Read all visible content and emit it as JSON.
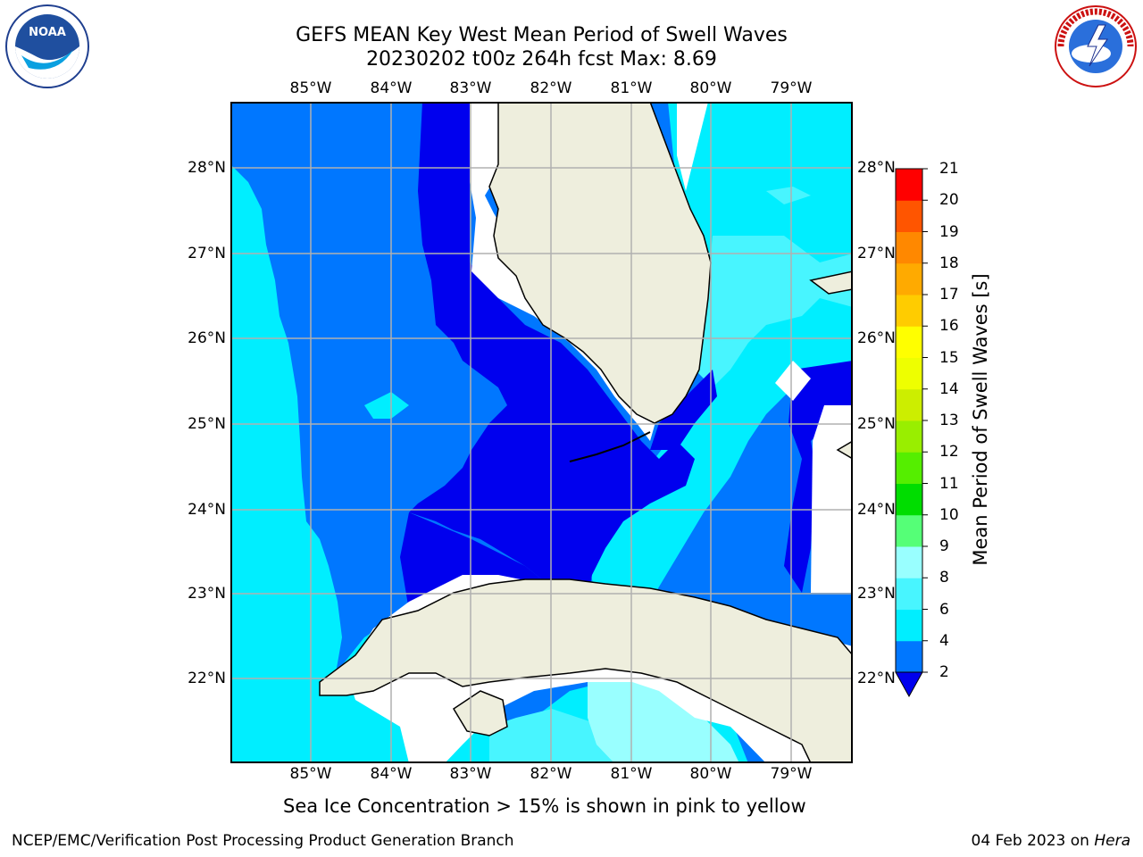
{
  "title": {
    "line1": "GEFS MEAN Key West Mean Period of Swell Waves",
    "line2": "20230202 t00z 264h fcst   Max: 8.69"
  },
  "map": {
    "longitude_labels": [
      "85°W",
      "84°W",
      "83°W",
      "82°W",
      "81°W",
      "80°W",
      "79°W"
    ],
    "latitude_labels": [
      "28°N",
      "27°N",
      "26°N",
      "25°N",
      "24°N",
      "23°N",
      "22°N"
    ],
    "colors": {
      "land": "#eeeedd",
      "missing": "#ffffff",
      "band_2_4": "#0077ff",
      "band_lt2": "#0000ee",
      "band_4_6": "#00eeff",
      "band_6_8": "#48f5ff",
      "band_8_9": "#99ffff",
      "grid": "#b0b0b0",
      "coast": "#000000"
    }
  },
  "colorbar": {
    "label": "Mean Period of Swell Waves [s]",
    "tick_labels": [
      "2",
      "4",
      "6",
      "8",
      "9",
      "10",
      "11",
      "12",
      "13",
      "14",
      "15",
      "16",
      "17",
      "18",
      "19",
      "20",
      "21"
    ],
    "bands": [
      {
        "from": 2,
        "to": 4,
        "color": "#0077ff"
      },
      {
        "from": 4,
        "to": 6,
        "color": "#00eeff"
      },
      {
        "from": 6,
        "to": 8,
        "color": "#48f5ff"
      },
      {
        "from": 8,
        "to": 9,
        "color": "#99ffff"
      },
      {
        "from": 9,
        "to": 10,
        "color": "#55ff77"
      },
      {
        "from": 10,
        "to": 11,
        "color": "#00dd00"
      },
      {
        "from": 11,
        "to": 12,
        "color": "#55ee00"
      },
      {
        "from": 12,
        "to": 13,
        "color": "#99ee00"
      },
      {
        "from": 13,
        "to": 14,
        "color": "#ccee00"
      },
      {
        "from": 14,
        "to": 15,
        "color": "#eeff00"
      },
      {
        "from": 15,
        "to": 16,
        "color": "#ffff00"
      },
      {
        "from": 16,
        "to": 17,
        "color": "#ffcc00"
      },
      {
        "from": 17,
        "to": 18,
        "color": "#ffaa00"
      },
      {
        "from": 18,
        "to": 19,
        "color": "#ff8800"
      },
      {
        "from": 19,
        "to": 20,
        "color": "#ff5500"
      },
      {
        "from": 20,
        "to": 21,
        "color": "#ff0000"
      }
    ],
    "under_color": "#0000ee"
  },
  "caption": "Sea Ice Concentration > 15% is shown in pink to yellow",
  "footer": {
    "left": "NCEP/EMC/Verification Post Processing Product Generation Branch",
    "right_prefix": "04 Feb 2023 on ",
    "right_host": "Hera"
  },
  "logos": {
    "left_text": "NOAA",
    "right_text": "NATIONAL WEATHER SERVICE"
  }
}
